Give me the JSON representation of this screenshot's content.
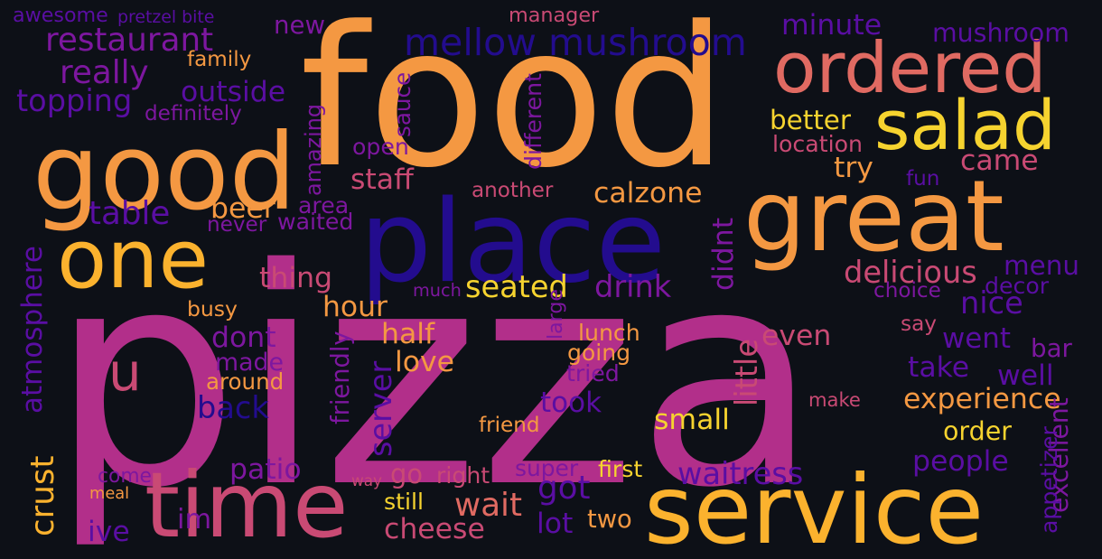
{
  "palette": {
    "background": "#0d1017",
    "indigo": "#230c8e",
    "violet": "#5a0ea3",
    "purple": "#7d179f",
    "magenta": "#b22f8a",
    "pink": "#c94a74",
    "coral": "#e06a62",
    "orange": "#f49842",
    "amber": "#fbb22e",
    "yellow": "#f6d32f"
  },
  "words": [
    {
      "text": "pizza",
      "color": "magenta"
    },
    {
      "text": "food",
      "color": "orange"
    },
    {
      "text": "place",
      "color": "indigo"
    },
    {
      "text": "good",
      "color": "orange"
    },
    {
      "text": "service",
      "color": "amber"
    },
    {
      "text": "great",
      "color": "orange"
    },
    {
      "text": "time",
      "color": "pink"
    },
    {
      "text": "one",
      "color": "amber"
    },
    {
      "text": "ordered",
      "color": "coral"
    },
    {
      "text": "salad",
      "color": "yellow"
    },
    {
      "text": "u",
      "color": "pink"
    },
    {
      "text": "mellow mushroom",
      "color": "indigo"
    },
    {
      "text": "restaurant",
      "color": "purple"
    },
    {
      "text": "really",
      "color": "purple"
    },
    {
      "text": "topping",
      "color": "violet"
    },
    {
      "text": "outside",
      "color": "violet"
    },
    {
      "text": "definitely",
      "color": "purple"
    },
    {
      "text": "family",
      "color": "orange"
    },
    {
      "text": "new",
      "color": "purple"
    },
    {
      "text": "manager",
      "color": "pink"
    },
    {
      "text": "awesome",
      "color": "violet"
    },
    {
      "text": "pretzel bite",
      "color": "violet"
    },
    {
      "text": "minute",
      "color": "violet"
    },
    {
      "text": "mushroom",
      "color": "violet"
    },
    {
      "text": "better",
      "color": "yellow"
    },
    {
      "text": "location",
      "color": "pink"
    },
    {
      "text": "try",
      "color": "orange"
    },
    {
      "text": "came",
      "color": "pink"
    },
    {
      "text": "fun",
      "color": "violet"
    },
    {
      "text": "sauce",
      "color": "purple"
    },
    {
      "text": "open",
      "color": "purple"
    },
    {
      "text": "different",
      "color": "purple"
    },
    {
      "text": "amazing",
      "color": "purple"
    },
    {
      "text": "staff",
      "color": "pink"
    },
    {
      "text": "another",
      "color": "pink"
    },
    {
      "text": "calzone",
      "color": "orange"
    },
    {
      "text": "table",
      "color": "violet"
    },
    {
      "text": "beer",
      "color": "orange"
    },
    {
      "text": "area",
      "color": "purple"
    },
    {
      "text": "never",
      "color": "purple"
    },
    {
      "text": "waited",
      "color": "purple"
    },
    {
      "text": "didnt",
      "color": "purple"
    },
    {
      "text": "thing",
      "color": "pink"
    },
    {
      "text": "delicious",
      "color": "pink"
    },
    {
      "text": "menu",
      "color": "violet"
    },
    {
      "text": "seated",
      "color": "yellow"
    },
    {
      "text": "drink",
      "color": "purple"
    },
    {
      "text": "much",
      "color": "purple"
    },
    {
      "text": "choice",
      "color": "purple"
    },
    {
      "text": "decor",
      "color": "violet"
    },
    {
      "text": "nice",
      "color": "violet"
    },
    {
      "text": "atmosphere",
      "color": "violet"
    },
    {
      "text": "busy",
      "color": "orange"
    },
    {
      "text": "hour",
      "color": "orange"
    },
    {
      "text": "large",
      "color": "purple"
    },
    {
      "text": "lunch",
      "color": "orange"
    },
    {
      "text": "little",
      "color": "pink"
    },
    {
      "text": "say",
      "color": "pink"
    },
    {
      "text": "dont",
      "color": "purple"
    },
    {
      "text": "half",
      "color": "orange"
    },
    {
      "text": "going",
      "color": "orange"
    },
    {
      "text": "even",
      "color": "pink"
    },
    {
      "text": "went",
      "color": "violet"
    },
    {
      "text": "bar",
      "color": "purple"
    },
    {
      "text": "made",
      "color": "purple"
    },
    {
      "text": "server",
      "color": "violet"
    },
    {
      "text": "love",
      "color": "orange"
    },
    {
      "text": "tried",
      "color": "purple"
    },
    {
      "text": "take",
      "color": "violet"
    },
    {
      "text": "well",
      "color": "violet"
    },
    {
      "text": "around",
      "color": "orange"
    },
    {
      "text": "friendly",
      "color": "purple"
    },
    {
      "text": "make",
      "color": "pink"
    },
    {
      "text": "experience",
      "color": "orange"
    },
    {
      "text": "back",
      "color": "indigo"
    },
    {
      "text": "took",
      "color": "violet"
    },
    {
      "text": "small",
      "color": "yellow"
    },
    {
      "text": "excellent",
      "color": "purple"
    },
    {
      "text": "friend",
      "color": "orange"
    },
    {
      "text": "order",
      "color": "yellow"
    },
    {
      "text": "crust",
      "color": "amber"
    },
    {
      "text": "appetizer",
      "color": "violet"
    },
    {
      "text": "patio",
      "color": "purple"
    },
    {
      "text": "way",
      "color": "pink"
    },
    {
      "text": "go",
      "color": "pink"
    },
    {
      "text": "right",
      "color": "pink"
    },
    {
      "text": "super",
      "color": "purple"
    },
    {
      "text": "first",
      "color": "yellow"
    },
    {
      "text": "waitress",
      "color": "violet"
    },
    {
      "text": "people",
      "color": "violet"
    },
    {
      "text": "come",
      "color": "purple"
    },
    {
      "text": "meal",
      "color": "orange"
    },
    {
      "text": "got",
      "color": "violet"
    },
    {
      "text": "wait",
      "color": "coral"
    },
    {
      "text": "still",
      "color": "yellow"
    },
    {
      "text": "im",
      "color": "purple"
    },
    {
      "text": "two",
      "color": "orange"
    },
    {
      "text": "cheese",
      "color": "pink"
    },
    {
      "text": "lot",
      "color": "violet"
    },
    {
      "text": "ive",
      "color": "violet"
    }
  ]
}
